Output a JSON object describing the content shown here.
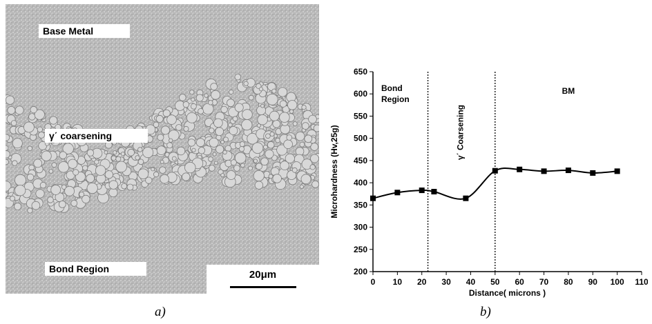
{
  "figure_a": {
    "labels": {
      "base_metal": "Base Metal",
      "coarsening": "γ΄ coarsening",
      "bond_region": "Bond Region"
    },
    "scale_bar": "20μm",
    "caption": "a)"
  },
  "figure_b": {
    "caption": "b)"
  },
  "chart_data": {
    "type": "line",
    "xlabel": "Distance( microns )",
    "ylabel": "Microhardness (Hv,25g)",
    "xlim": [
      0,
      110
    ],
    "ylim": [
      200,
      650
    ],
    "x_ticks": [
      0,
      10,
      20,
      30,
      40,
      50,
      60,
      70,
      80,
      90,
      100,
      110
    ],
    "y_ticks": [
      200,
      250,
      300,
      350,
      400,
      450,
      500,
      550,
      600,
      650
    ],
    "grid": false,
    "series": [
      {
        "x": [
          0,
          10,
          20,
          25,
          38,
          50,
          60,
          70,
          80,
          90,
          100
        ],
        "y": [
          365,
          378,
          383,
          380,
          365,
          427,
          430,
          426,
          428,
          422,
          426
        ]
      }
    ],
    "vlines": [
      22.5,
      50
    ],
    "region_labels": {
      "bond": "Bond Region",
      "coarsening": "γ΄ Coarsening",
      "bm": "BM"
    },
    "colors": {
      "line": "#000000",
      "marker": "#000000"
    }
  }
}
